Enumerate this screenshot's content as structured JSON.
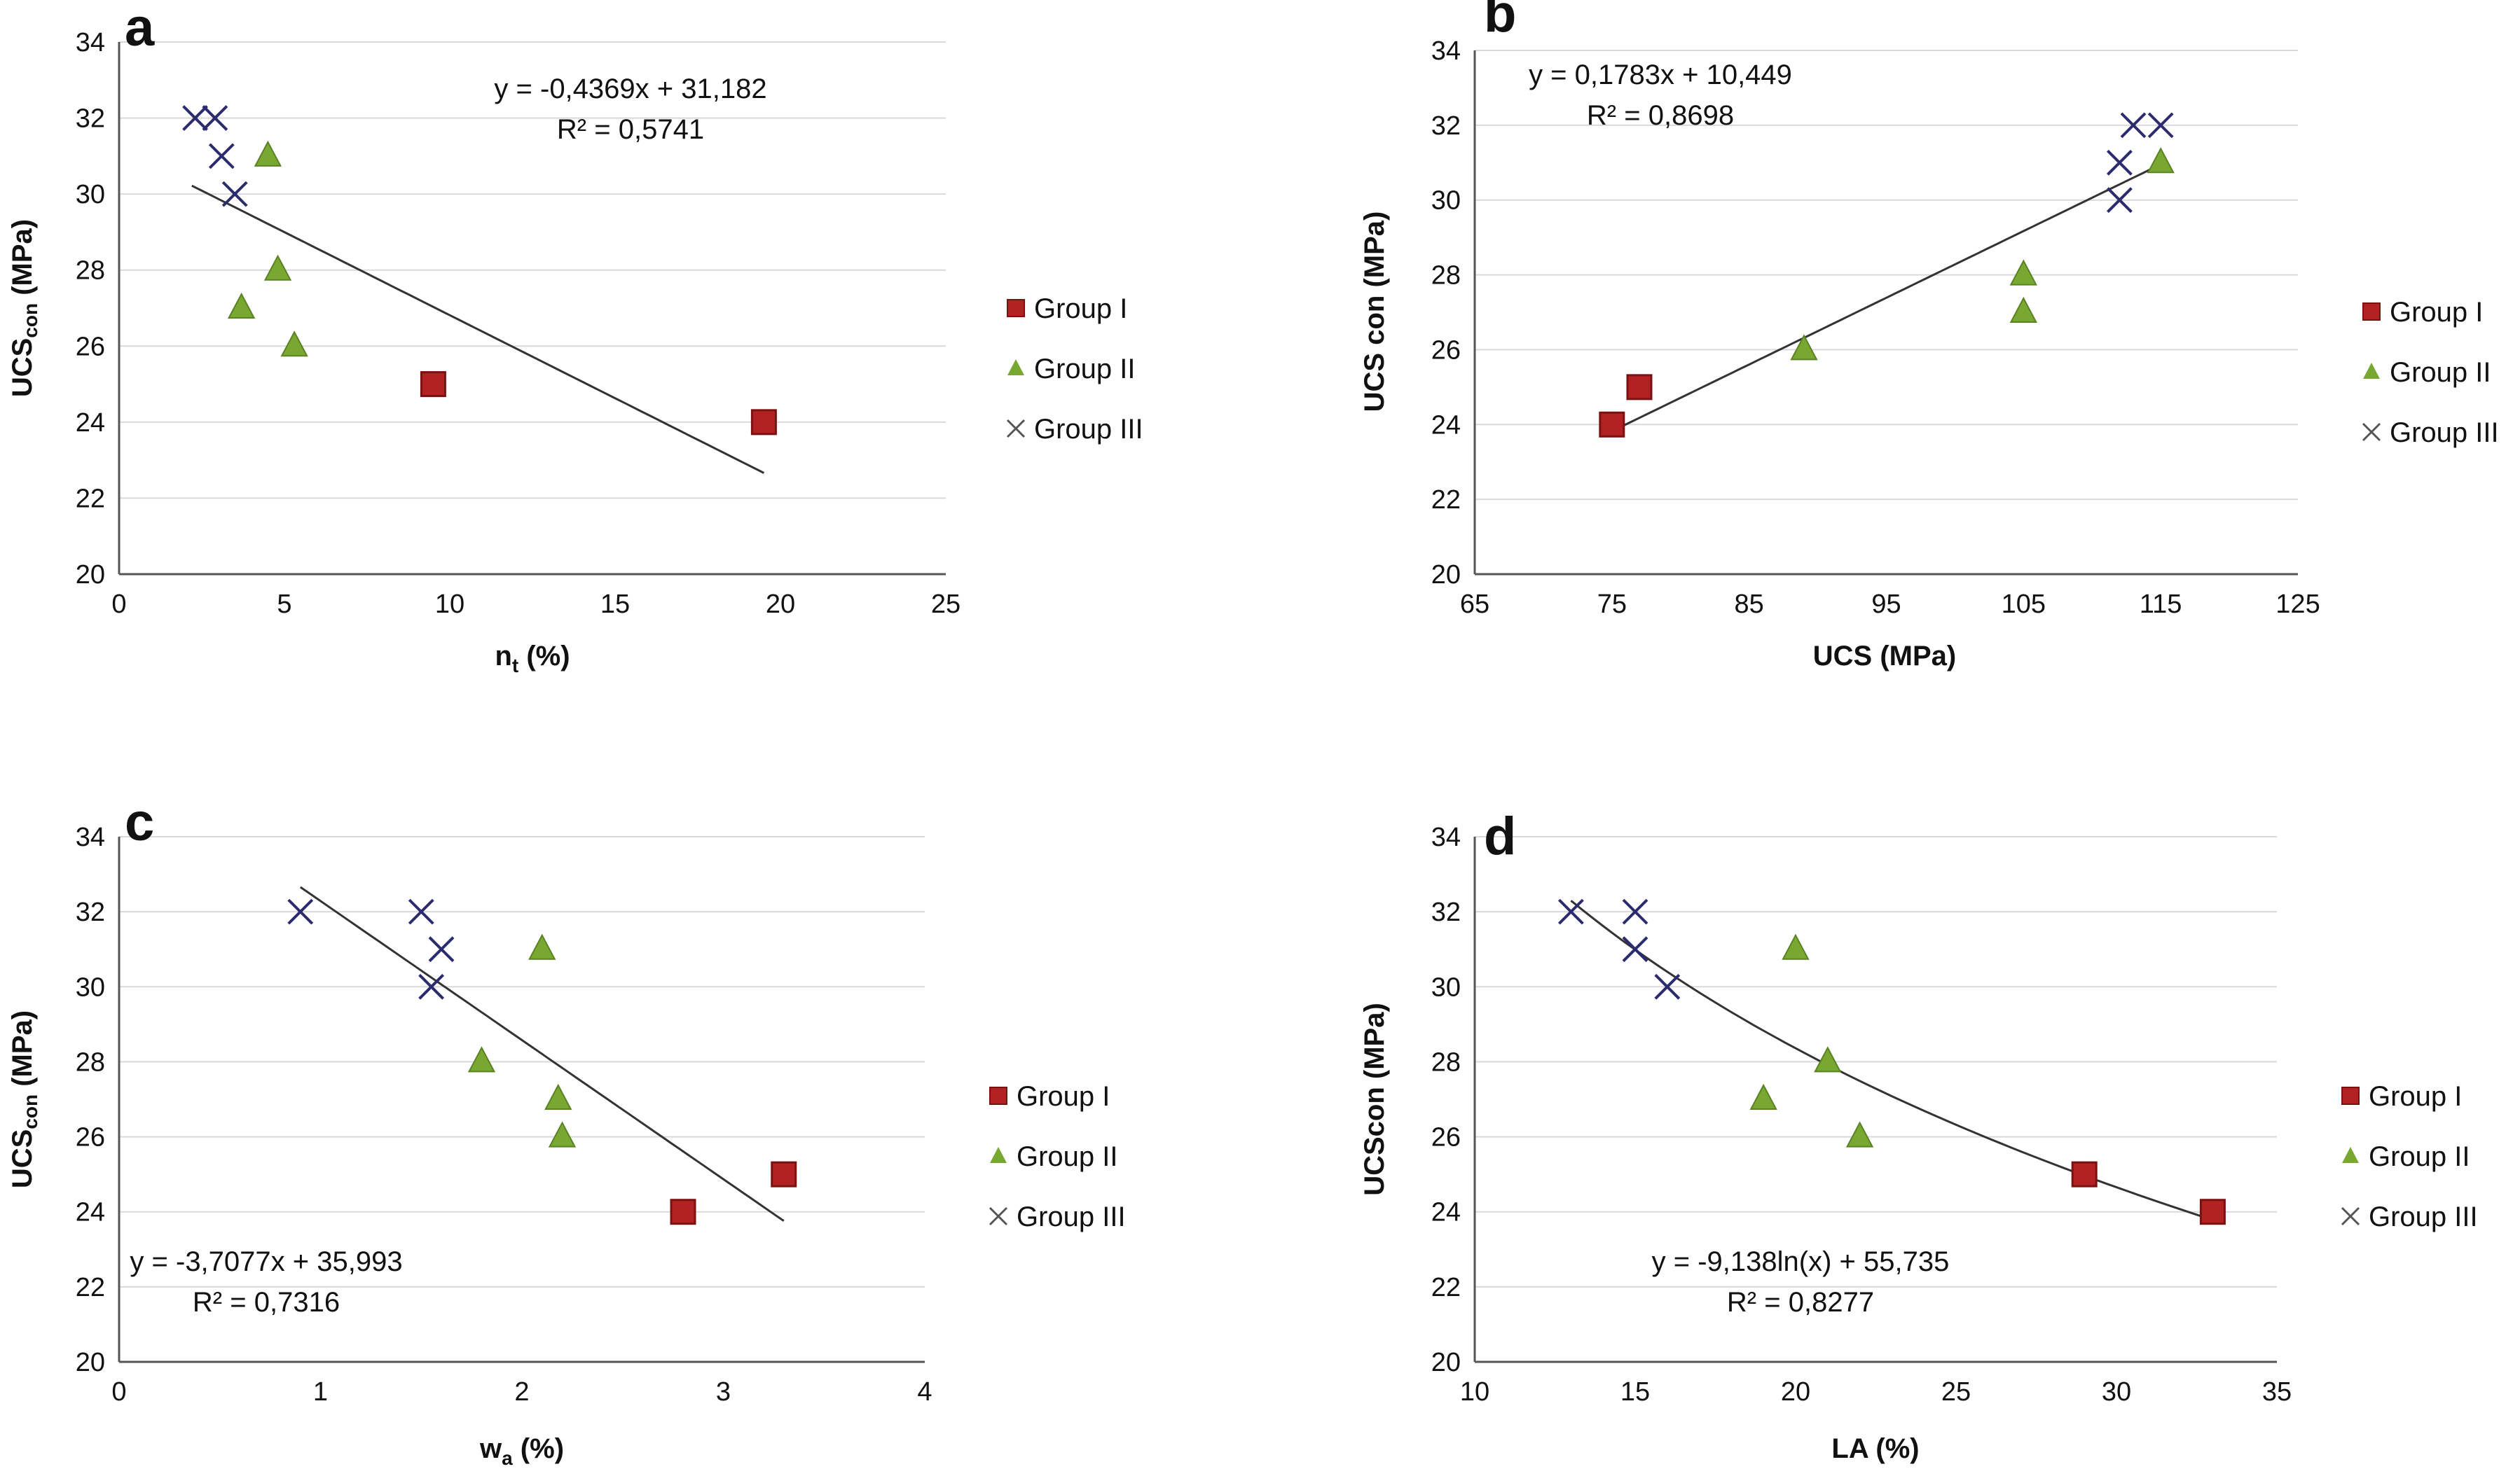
{
  "colors": {
    "group1": "#b22222",
    "group1_edge": "#7a1212",
    "group2": "#79a832",
    "group2_edge": "#5a8222",
    "group3": "#2b2b6e",
    "trend": "#333333"
  },
  "chart_data": [
    {
      "panel": "a",
      "type": "scatter",
      "xlabel_main": "n",
      "xlabel_sub": "t",
      "xlabel_tail": " (%)",
      "ylabel_main": "UCS",
      "ylabel_sub": "con",
      "ylabel_tail": " (MPa)",
      "xlim": [
        0,
        25
      ],
      "ylim": [
        20,
        34
      ],
      "xticks": [
        0,
        5,
        10,
        15,
        20,
        25
      ],
      "yticks": [
        20,
        22,
        24,
        26,
        28,
        30,
        32,
        34
      ],
      "equation": "y = -0,4369x + 31,182",
      "r2": "R² = 0,5741",
      "legend_position": "right",
      "trend": {
        "kind": "linear",
        "slope": -0.4369,
        "intercept": 31.182,
        "x_range": [
          2.2,
          19.5
        ]
      },
      "series": [
        {
          "name": "Group I",
          "marker": "square",
          "x": [
            9.5,
            19.5
          ],
          "y": [
            25,
            24
          ]
        },
        {
          "name": "Group II",
          "marker": "triangle",
          "x": [
            4.5,
            4.8,
            3.7,
            5.3
          ],
          "y": [
            31,
            28,
            27,
            26
          ]
        },
        {
          "name": "Group III",
          "marker": "cross",
          "x": [
            2.3,
            2.9,
            3.1,
            3.5
          ],
          "y": [
            32,
            32,
            31,
            30
          ]
        }
      ]
    },
    {
      "panel": "b",
      "type": "scatter",
      "xlabel_main": "UCS (MPa)",
      "xlabel_sub": "",
      "xlabel_tail": "",
      "ylabel_main": "UCS con (MPa)",
      "ylabel_sub": "",
      "ylabel_tail": "",
      "xlim": [
        65,
        125
      ],
      "ylim": [
        20,
        34
      ],
      "xticks": [
        65,
        75,
        85,
        95,
        105,
        115,
        125
      ],
      "yticks": [
        20,
        22,
        24,
        26,
        28,
        30,
        32,
        34
      ],
      "equation": "y = 0,1783x + 10,449",
      "r2": "R² = 0,8698",
      "legend_position": "right",
      "trend": {
        "kind": "linear",
        "slope": 0.1783,
        "intercept": 10.449,
        "x_range": [
          75,
          115
        ]
      },
      "series": [
        {
          "name": "Group I",
          "marker": "square",
          "x": [
            75,
            77
          ],
          "y": [
            24,
            25
          ]
        },
        {
          "name": "Group II",
          "marker": "triangle",
          "x": [
            89,
            105,
            105,
            115
          ],
          "y": [
            26,
            28,
            27,
            31
          ]
        },
        {
          "name": "Group III",
          "marker": "cross",
          "x": [
            112,
            113,
            115,
            112
          ],
          "y": [
            31,
            32,
            32,
            30
          ]
        }
      ]
    },
    {
      "panel": "c",
      "type": "scatter",
      "xlabel_main": "w",
      "xlabel_sub": "a",
      "xlabel_tail": " (%)",
      "ylabel_main": "UCS",
      "ylabel_sub": "con",
      "ylabel_tail": " (MPa)",
      "xlim": [
        0,
        4
      ],
      "ylim": [
        20,
        34
      ],
      "xticks": [
        0,
        1,
        2,
        3,
        4
      ],
      "yticks": [
        20,
        22,
        24,
        26,
        28,
        30,
        32,
        34
      ],
      "equation": "y = -3,7077x + 35,993",
      "r2": "R² = 0,7316",
      "legend_position": "right",
      "trend": {
        "kind": "linear",
        "slope": -3.7077,
        "intercept": 35.993,
        "x_range": [
          0.9,
          3.3
        ]
      },
      "series": [
        {
          "name": "Group I",
          "marker": "square",
          "x": [
            2.8,
            3.3
          ],
          "y": [
            24,
            25
          ]
        },
        {
          "name": "Group II",
          "marker": "triangle",
          "x": [
            2.1,
            1.8,
            2.18,
            2.2
          ],
          "y": [
            31,
            28,
            27,
            26
          ]
        },
        {
          "name": "Group III",
          "marker": "cross",
          "x": [
            0.9,
            1.5,
            1.6,
            1.55
          ],
          "y": [
            32,
            32,
            31,
            30
          ]
        }
      ]
    },
    {
      "panel": "d",
      "type": "scatter",
      "xlabel_main": "LA (%)",
      "xlabel_sub": "",
      "xlabel_tail": "",
      "ylabel_main": "UCScon (MPa)",
      "ylabel_sub": "",
      "ylabel_tail": "",
      "xlim": [
        10,
        35
      ],
      "ylim": [
        20,
        34
      ],
      "xticks": [
        10,
        15,
        20,
        25,
        30,
        35
      ],
      "yticks": [
        20,
        22,
        24,
        26,
        28,
        30,
        32,
        34
      ],
      "equation": "y = -9,138ln(x) + 55,735",
      "r2": "R² = 0,8277",
      "legend_position": "right",
      "trend": {
        "kind": "log",
        "a": -9.138,
        "b": 55.735,
        "x_range": [
          13,
          33
        ]
      },
      "series": [
        {
          "name": "Group I",
          "marker": "square",
          "x": [
            29,
            33
          ],
          "y": [
            25,
            24
          ]
        },
        {
          "name": "Group II",
          "marker": "triangle",
          "x": [
            20,
            21,
            19,
            22
          ],
          "y": [
            31,
            28,
            27,
            26
          ]
        },
        {
          "name": "Group III",
          "marker": "cross",
          "x": [
            13,
            15,
            15,
            16
          ],
          "y": [
            32,
            32,
            31,
            30
          ]
        }
      ]
    }
  ]
}
